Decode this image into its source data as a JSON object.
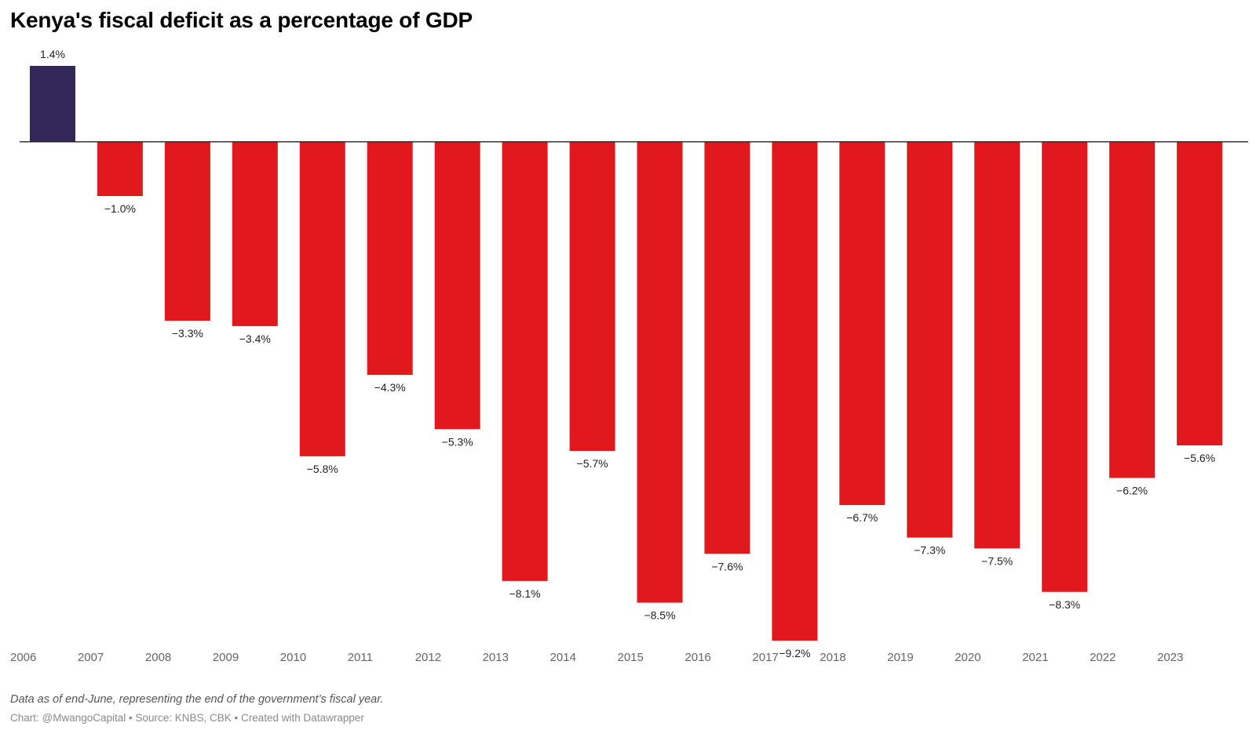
{
  "header": {
    "title": "Kenya's fiscal deficit as a percentage of GDP"
  },
  "footer": {
    "note": "Data as of end-June, representing the end of the government’s fiscal year.",
    "credits": "Chart: @MwangoCapital • Source: KNBS, CBK • Created with Datawrapper"
  },
  "colors": {
    "positive": "#33275a",
    "negative": "#e1191c",
    "baseline": "#222222"
  },
  "chart_data": {
    "type": "bar",
    "title": "Kenya's fiscal deficit as a percentage of GDP",
    "xlabel": "",
    "ylabel": "",
    "categories": [
      "2006",
      "2007",
      "2008",
      "2009",
      "2010",
      "2011",
      "2012",
      "2013",
      "2014",
      "2015",
      "2016",
      "2017",
      "2018",
      "2019",
      "2020",
      "2021",
      "2022",
      "2023"
    ],
    "values": [
      1.4,
      -1.0,
      -3.3,
      -3.4,
      -5.8,
      -4.3,
      -5.3,
      -8.1,
      -5.7,
      -8.5,
      -7.6,
      -9.2,
      -6.7,
      -7.3,
      -7.5,
      -8.3,
      -6.2,
      -5.6
    ],
    "value_labels": [
      "1.4%",
      "−1.0%",
      "−3.3%",
      "−3.4%",
      "−5.8%",
      "−4.3%",
      "−5.3%",
      "−8.1%",
      "−5.7%",
      "−8.5%",
      "−7.6%",
      "−9.2%",
      "−6.7%",
      "−7.3%",
      "−7.5%",
      "−8.3%",
      "−6.2%",
      "−5.6%"
    ],
    "ylim": [
      -9.2,
      1.4
    ],
    "grid": false,
    "legend": "none"
  }
}
